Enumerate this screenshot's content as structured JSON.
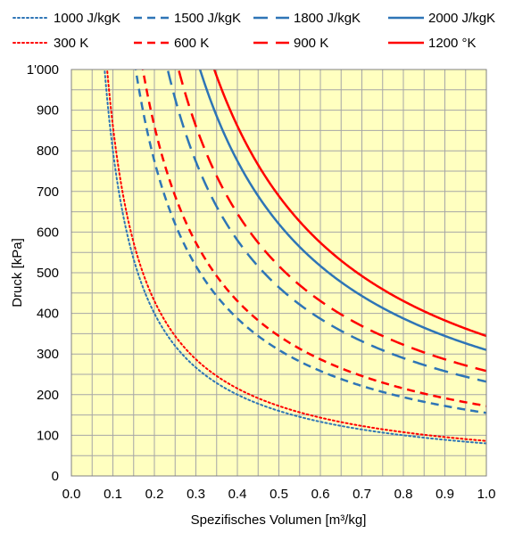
{
  "chart_data": {
    "type": "line",
    "xlabel": "Spezifisches Volumen [m³/kg]",
    "ylabel": "Druck  [kPa]",
    "xlim": [
      0,
      1.0
    ],
    "ylim": [
      0,
      1000
    ],
    "x_ticks": [
      "0.0",
      "0.1",
      "0.2",
      "0.3",
      "0.4",
      "0.5",
      "0.6",
      "0.7",
      "0.8",
      "0.9",
      "1.0"
    ],
    "y_ticks": [
      "0",
      "100",
      "200",
      "300",
      "400",
      "500",
      "600",
      "700",
      "800",
      "900",
      "1'000"
    ],
    "grid": true,
    "legend_position": "top",
    "background_color": "#ffffc0",
    "series": [
      {
        "name": "1000 J/kgK",
        "color": "#2e75b6",
        "style": "dotted",
        "kind": "constant",
        "values_note": "",
        "constant": 80
      },
      {
        "name": "1500 J/kgK",
        "color": "#2e75b6",
        "style": "dashed-short",
        "kind": "constant",
        "constant": 155
      },
      {
        "name": "1800 J/kgK",
        "color": "#2e75b6",
        "style": "dashed-long",
        "kind": "constant",
        "constant": 232
      },
      {
        "name": "2000 J/kgK",
        "color": "#2e75b6",
        "style": "solid",
        "kind": "constant",
        "constant": 310
      },
      {
        "name": "300 K",
        "color": "#ff0000",
        "style": "dotted",
        "kind": "constant",
        "constant": 86.1
      },
      {
        "name": "600 K",
        "color": "#ff0000",
        "style": "dashed-short",
        "kind": "constant",
        "constant": 172.2
      },
      {
        "name": "900 K",
        "color": "#ff0000",
        "style": "dashed-long",
        "kind": "constant",
        "constant": 258.3
      },
      {
        "name": "1200 °K",
        "color": "#ff0000",
        "style": "solid",
        "kind": "constant",
        "constant": 344.4
      }
    ]
  }
}
